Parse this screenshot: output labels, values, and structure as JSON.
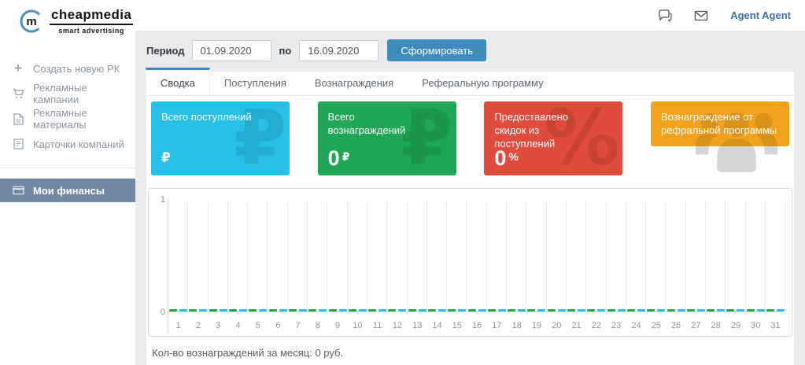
{
  "header": {
    "logo": {
      "initial": "m",
      "brand": "cheapmedia",
      "tagline": "smart advertising"
    },
    "icons": [
      "chat-icon",
      "mail-icon"
    ],
    "user": "Agent Agent"
  },
  "sidebar": {
    "items": [
      {
        "label": "Создать новую РК",
        "icon": "plus-icon",
        "active": false
      },
      {
        "label": "Рекламные кампании",
        "icon": "cart-icon",
        "active": false
      },
      {
        "label": "Рекламные материалы",
        "icon": "document-icon",
        "active": false
      },
      {
        "label": "Карточки компаний",
        "icon": "company-card-icon",
        "active": false
      },
      {
        "label": "Мои финансы",
        "icon": "credit-card-icon",
        "active": true
      }
    ]
  },
  "filters": {
    "period_label": "Период",
    "date_from": "01.09.2020",
    "to_label": "по",
    "date_to": "16.09.2020",
    "submit_label": "Сформировать"
  },
  "tabs": [
    {
      "label": "Сводка",
      "active": true
    },
    {
      "label": "Поступления",
      "active": false
    },
    {
      "label": "Вознаграждения",
      "active": false
    },
    {
      "label": "Реферальную программу",
      "active": false
    }
  ],
  "cards": [
    {
      "title": "Всего поступлений",
      "value": "",
      "unit": "₽",
      "color": "#27c0e7",
      "watermark": "₽"
    },
    {
      "title": "Всего вознаграждений",
      "value": "0",
      "unit": "₽",
      "color": "#1fa656",
      "watermark": "₽"
    },
    {
      "title": "Предоставлено скидок из поступлений",
      "value": "0",
      "unit": "%",
      "color": "#df4b3c",
      "watermark": "%"
    },
    {
      "title": "Вознаграждение от рефральной программы",
      "value": "",
      "unit": "",
      "color": "#f1a21e",
      "watermark": "people-icon"
    }
  ],
  "chart_data": {
    "type": "bar",
    "title": "",
    "categories": [
      "1",
      "2",
      "3",
      "4",
      "5",
      "6",
      "7",
      "8",
      "9",
      "10",
      "11",
      "12",
      "13",
      "14",
      "15",
      "16",
      "17",
      "18",
      "19",
      "20",
      "21",
      "22",
      "23",
      "24",
      "25",
      "26",
      "27",
      "28",
      "29",
      "30",
      "31"
    ],
    "series": [
      {
        "name": "series-green",
        "color": "#2aa64b",
        "values": [
          0,
          0,
          0,
          0,
          0,
          0,
          0,
          0,
          0,
          0,
          0,
          0,
          0,
          0,
          0,
          0,
          0,
          0,
          0,
          0,
          0,
          0,
          0,
          0,
          0,
          0,
          0,
          0,
          0,
          0,
          0
        ]
      },
      {
        "name": "series-cyan",
        "color": "#2ac0e8",
        "values": [
          0,
          0,
          0,
          0,
          0,
          0,
          0,
          0,
          0,
          0,
          0,
          0,
          0,
          0,
          0,
          0,
          0,
          0,
          0,
          0,
          0,
          0,
          0,
          0,
          0,
          0,
          0,
          0,
          0,
          0,
          0
        ]
      }
    ],
    "xlabel": "",
    "ylabel": "",
    "ylim": [
      0,
      1
    ],
    "yticks": [
      "1",
      "0"
    ],
    "grid": "vertical",
    "legend": "none"
  },
  "footer_note": "Кол-во вознаграждений за месяц: 0 руб.",
  "colors": {
    "accent_blue": "#3d8bbc",
    "active_sidebar": "#7289a6",
    "page_background": "#e9ebed",
    "user_link": "#3a70a8"
  }
}
